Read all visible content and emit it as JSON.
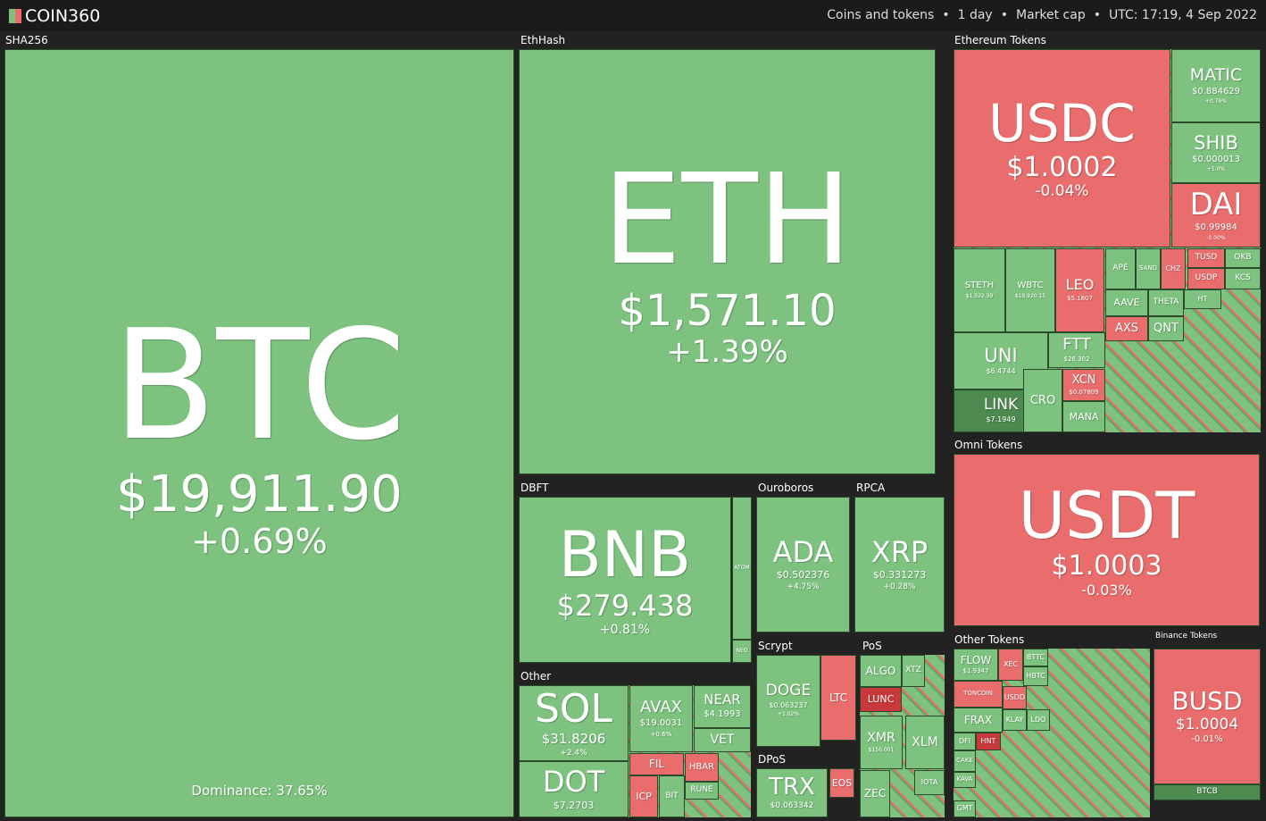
{
  "header": {
    "logo": "COIN360",
    "filters": [
      "Coins and tokens",
      "1 day",
      "Market cap",
      "UTC: 17:19, 4 Sep 2022"
    ]
  },
  "groups": [
    {
      "label": "SHA256",
      "tiles": [
        {
          "symbol": "BTC",
          "price": "$19,911.90",
          "change": "+0.69%",
          "note": "Dominance: 37.65%",
          "color": "#7dc27f"
        }
      ]
    },
    {
      "label": "EthHash",
      "tiles": [
        {
          "symbol": "ETH",
          "price": "$1,571.10",
          "change": "+1.39%",
          "color": "#7dc27f"
        }
      ]
    },
    {
      "label": "Ethereum Tokens",
      "tiles": [
        {
          "symbol": "USDC",
          "price": "$1.0002",
          "change": "-0.04%",
          "color": "#ea6d6d"
        },
        {
          "symbol": "MATIC",
          "price": "$0.884629",
          "change": "+0.76%",
          "color": "#7dc27f"
        },
        {
          "symbol": "SHIB",
          "price": "$0.000013",
          "change": "+1.0%",
          "color": "#7dc27f"
        },
        {
          "symbol": "DAI",
          "price": "$0.99984",
          "change": "-0.00%",
          "color": "#ea6d6d"
        },
        {
          "symbol": "STETH",
          "price": "$1,522.39",
          "color": "#7dc27f"
        },
        {
          "symbol": "WBTC",
          "price": "$19,920.15",
          "color": "#7dc27f"
        },
        {
          "symbol": "LEO",
          "price": "$5.1807",
          "color": "#ea6d6d"
        },
        {
          "symbol": "APE",
          "color": "#7dc27f"
        },
        {
          "symbol": "SAND",
          "color": "#7dc27f"
        },
        {
          "symbol": "CHZ",
          "color": "#ea6d6d"
        },
        {
          "symbol": "TUSD",
          "color": "#ea6d6d"
        },
        {
          "symbol": "OKB",
          "color": "#7dc27f"
        },
        {
          "symbol": "USDP",
          "color": "#ea6d6d"
        },
        {
          "symbol": "KCS",
          "color": "#7dc27f"
        },
        {
          "symbol": "AAVE",
          "color": "#7dc27f"
        },
        {
          "symbol": "THETA",
          "color": "#7dc27f"
        },
        {
          "symbol": "HT",
          "color": "#7dc27f"
        },
        {
          "symbol": "AXS",
          "color": "#ea6d6d"
        },
        {
          "symbol": "QNT",
          "color": "#7dc27f"
        },
        {
          "symbol": "UNI",
          "price": "$6.4744",
          "color": "#7dc27f"
        },
        {
          "symbol": "FTT",
          "price": "$26.302",
          "color": "#7dc27f"
        },
        {
          "symbol": "LINK",
          "price": "$7.1949",
          "color": "#4d8a4f"
        },
        {
          "symbol": "CRO",
          "color": "#7dc27f"
        },
        {
          "symbol": "XCN",
          "price": "$0.07809",
          "color": "#ea6d6d"
        },
        {
          "symbol": "MANA",
          "color": "#7dc27f"
        }
      ]
    },
    {
      "label": "Omni Tokens",
      "tiles": [
        {
          "symbol": "USDT",
          "price": "$1.0003",
          "change": "-0.03%",
          "color": "#ea6d6d"
        }
      ]
    },
    {
      "label": "DBFT",
      "tiles": [
        {
          "symbol": "BNB",
          "price": "$279.438",
          "change": "+0.81%",
          "color": "#7dc27f"
        },
        {
          "symbol": "ATOM",
          "color": "#7dc27f"
        },
        {
          "symbol": "NEO",
          "color": "#7dc27f"
        }
      ]
    },
    {
      "label": "Ouroboros",
      "tiles": [
        {
          "symbol": "ADA",
          "price": "$0.502376",
          "change": "+4.75%",
          "color": "#7dc27f"
        }
      ]
    },
    {
      "label": "RPCA",
      "tiles": [
        {
          "symbol": "XRP",
          "price": "$0.331273",
          "change": "+0.28%",
          "color": "#7dc27f"
        }
      ]
    },
    {
      "label": "Other",
      "tiles": [
        {
          "symbol": "SOL",
          "price": "$31.8206",
          "change": "+2.4%",
          "color": "#7dc27f"
        },
        {
          "symbol": "DOT",
          "price": "$7.2703",
          "color": "#7dc27f"
        },
        {
          "symbol": "AVAX",
          "price": "$19.0031",
          "change": "+0.6%",
          "color": "#7dc27f"
        },
        {
          "symbol": "NEAR",
          "price": "$4.1993",
          "color": "#7dc27f"
        },
        {
          "symbol": "VET",
          "color": "#7dc27f"
        },
        {
          "symbol": "FIL",
          "color": "#ea6d6d"
        },
        {
          "symbol": "HBAR",
          "color": "#ea6d6d"
        },
        {
          "symbol": "RUNE",
          "color": "#7dc27f"
        },
        {
          "symbol": "ICP",
          "color": "#ea6d6d"
        },
        {
          "symbol": "BIT",
          "color": "#7dc27f"
        }
      ]
    },
    {
      "label": "Scrypt",
      "tiles": [
        {
          "symbol": "DOGE",
          "price": "$0.063237",
          "change": "+1.02%",
          "color": "#7dc27f"
        },
        {
          "symbol": "LTC",
          "color": "#ea6d6d"
        }
      ]
    },
    {
      "label": "PoS",
      "tiles": [
        {
          "symbol": "ALGO",
          "color": "#7dc27f"
        },
        {
          "symbol": "XTZ",
          "color": "#7dc27f"
        },
        {
          "symbol": "LUNC",
          "color": "#c9393c"
        },
        {
          "symbol": "XMR",
          "price": "$156.001",
          "color": "#7dc27f"
        },
        {
          "symbol": "XLM",
          "color": "#7dc27f"
        },
        {
          "symbol": "ZEC",
          "color": "#7dc27f"
        },
        {
          "symbol": "IOTA",
          "color": "#7dc27f"
        }
      ]
    },
    {
      "label": "DPoS",
      "tiles": [
        {
          "symbol": "TRX",
          "price": "$0.063342",
          "color": "#7dc27f"
        },
        {
          "symbol": "EOS",
          "color": "#ea6d6d"
        }
      ]
    },
    {
      "label": "Other Tokens",
      "tiles": [
        {
          "symbol": "FLOW",
          "price": "$1.9347",
          "color": "#7dc27f"
        },
        {
          "symbol": "XEC",
          "color": "#ea6d6d"
        },
        {
          "symbol": "BTTC",
          "color": "#7dc27f"
        },
        {
          "symbol": "HBTC",
          "color": "#7dc27f"
        },
        {
          "symbol": "TONCOIN",
          "color": "#ea6d6d"
        },
        {
          "symbol": "USDD",
          "color": "#ea6d6d"
        },
        {
          "symbol": "KLAY",
          "color": "#7dc27f"
        },
        {
          "symbol": "LDO",
          "color": "#7dc27f"
        },
        {
          "symbol": "FRAX",
          "color": "#7dc27f"
        },
        {
          "symbol": "DFI",
          "color": "#7dc27f"
        },
        {
          "symbol": "HNT",
          "color": "#c9393c"
        },
        {
          "symbol": "CAKE",
          "color": "#7dc27f"
        },
        {
          "symbol": "KAVA",
          "color": "#7dc27f"
        },
        {
          "symbol": "GMT",
          "color": "#7dc27f"
        }
      ]
    },
    {
      "label": "Binance Tokens",
      "tiles": [
        {
          "symbol": "BUSD",
          "price": "$1.0004",
          "change": "-0.01%",
          "color": "#ea6d6d"
        },
        {
          "symbol": "BTCB",
          "color": "#4d8a4f"
        }
      ]
    }
  ]
}
